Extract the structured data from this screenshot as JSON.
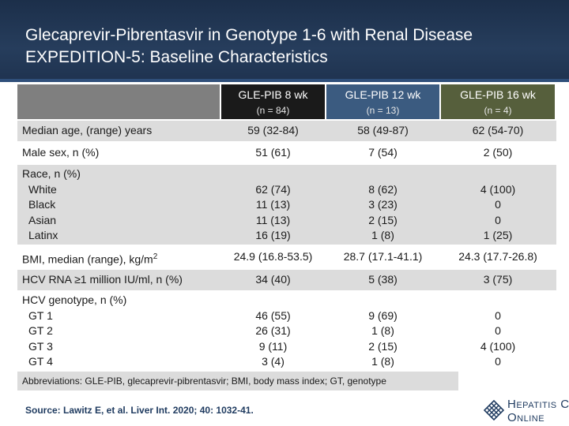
{
  "header": {
    "title_line1": "Glecaprevir-Pibrentasvir in Genotype 1-6 with Renal Disease",
    "title_line2": "EXPEDITION-5: Baseline Characteristics"
  },
  "columns": [
    {
      "label": "GLE-PIB 8 wk",
      "n": "(n = 84)"
    },
    {
      "label": "GLE-PIB 12 wk",
      "n": "(n = 13)"
    },
    {
      "label": "GLE-PIB 16 wk",
      "n": "(n = 4)"
    }
  ],
  "rows": [
    {
      "label": "Median age, (range) years",
      "values": [
        "59 (32-84)",
        "58 (49-87)",
        "62 (54-70)"
      ]
    },
    {
      "label": "Male sex, n (%)",
      "values": [
        "51 (61)",
        "7 (54)",
        "2 (50)"
      ]
    },
    {
      "label": "Race, n (%)",
      "sub": [
        "White",
        "Black",
        "Asian",
        "Latinx"
      ],
      "values": [
        [
          "62 (74)",
          "11 (13)",
          "11 (13)",
          "16 (19)"
        ],
        [
          "8 (62)",
          "3 (23)",
          "2 (15)",
          "1 (8)"
        ],
        [
          "4 (100)",
          "0",
          "0",
          "1 (25)"
        ]
      ]
    },
    {
      "label": "BMI, median (range), kg/m",
      "label_sup": "2",
      "values": [
        "24.9 (16.8-53.5)",
        "28.7 (17.1-41.1)",
        "24.3 (17.7-26.8)"
      ]
    },
    {
      "label": "HCV RNA ≥1 million IU/ml, n (%)",
      "values": [
        "34 (40)",
        "5 (38)",
        "3 (75)"
      ]
    },
    {
      "label": "HCV genotype, n (%)",
      "sub": [
        "GT 1",
        "GT 2",
        "GT 3",
        "GT 4"
      ],
      "values": [
        [
          "46 (55)",
          "26 (31)",
          "9 (11)",
          "3 (4)"
        ],
        [
          "9 (69)",
          "1 (8)",
          "2 (15)",
          "1 (8)"
        ],
        [
          "0",
          "0",
          "4 (100)",
          "0"
        ]
      ]
    }
  ],
  "abbreviations": "Abbreviations: GLE-PIB, glecaprevir-pibrentasvir; BMI, body mass index; GT, genotype",
  "source": "Source: Lawitz E, et al. Liver Int. 2020; 40: 1032-41.",
  "logo": {
    "line1_cap": "H",
    "line1_rest": "EPATITIS",
    "line1_end": "C",
    "line2_cap": "O",
    "line2_rest": "NLINE"
  }
}
